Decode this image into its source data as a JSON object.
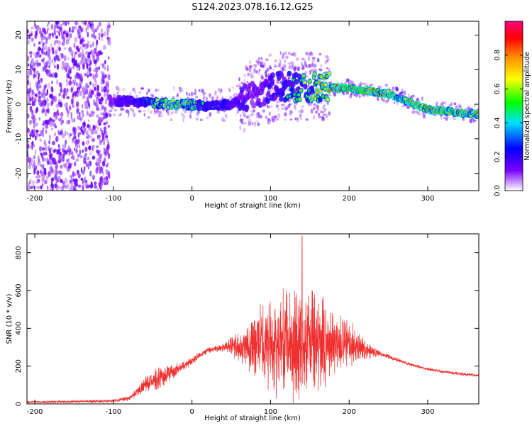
{
  "figure_title": "S124.2023.078.16.12.G25",
  "colors": {
    "snr_line": "#f03030",
    "frame": "#000000",
    "background": "#ffffff"
  },
  "chart_data": [
    {
      "type": "heatmap",
      "xlabel": "Height of straight line (km)",
      "ylabel": "Frequency (Hz)",
      "xlim": [
        -210,
        365
      ],
      "ylim": [
        -25,
        24
      ],
      "x_ticks": [
        -200,
        -100,
        0,
        100,
        200,
        300
      ],
      "y_ticks": [
        -20,
        -10,
        0,
        10,
        20
      ],
      "colorbar": {
        "label": "Normalized spectral amplitude",
        "range": [
          0,
          1
        ],
        "ticks": [
          0.0,
          0.2,
          0.4,
          0.6,
          0.8
        ],
        "tick_labels": [
          "0.0",
          "0.2",
          "0.4",
          "0.6",
          "0.8"
        ],
        "colormap": [
          "#ffffff",
          "#7a00ff",
          "#0000ff",
          "#00e0ff",
          "#00ff00",
          "#ffff00",
          "#ff8000",
          "#ff0000",
          "#ff0080"
        ]
      },
      "ridge": [
        {
          "x": -100,
          "y": 1,
          "amp": 0.3
        },
        {
          "x": -60,
          "y": 0.5,
          "amp": 0.45
        },
        {
          "x": -20,
          "y": 0,
          "amp": 0.85
        },
        {
          "x": 20,
          "y": -0.5,
          "amp": 0.5
        },
        {
          "x": 50,
          "y": 0,
          "amp": 0.4
        },
        {
          "x": 80,
          "y": 3,
          "amp": 0.3
        },
        {
          "x": 110,
          "y": 5,
          "amp": 0.4
        },
        {
          "x": 160,
          "y": 5,
          "amp": 0.7
        },
        {
          "x": 200,
          "y": 4.5,
          "amp": 0.9
        },
        {
          "x": 250,
          "y": 3,
          "amp": 0.85
        },
        {
          "x": 300,
          "y": -1.5,
          "amp": 0.85
        },
        {
          "x": 365,
          "y": -3,
          "amp": 0.8
        }
      ]
    },
    {
      "type": "line",
      "xlabel": "Height of straight line (km)",
      "ylabel": "SNR (10 * v/v)",
      "xlim": [
        -210,
        365
      ],
      "ylim": [
        0,
        900
      ],
      "x_ticks": [
        -200,
        -100,
        0,
        100,
        200,
        300
      ],
      "y_ticks": [
        0,
        200,
        400,
        600,
        800
      ],
      "envelope": {
        "x": [
          -210,
          -100,
          -80,
          -60,
          -40,
          -20,
          0,
          20,
          40,
          60,
          80,
          100,
          120,
          140,
          160,
          180,
          200,
          220,
          240,
          260,
          280,
          300,
          320,
          340,
          365
        ],
        "mean": [
          10,
          15,
          30,
          100,
          140,
          180,
          230,
          285,
          300,
          310,
          320,
          320,
          320,
          320,
          320,
          320,
          310,
          290,
          265,
          235,
          205,
          185,
          170,
          160,
          150
        ],
        "spread": [
          8,
          10,
          15,
          45,
          70,
          40,
          25,
          20,
          25,
          100,
          200,
          280,
          320,
          360,
          300,
          220,
          150,
          60,
          15,
          12,
          10,
          10,
          10,
          10,
          10
        ]
      },
      "peak": {
        "x": 140,
        "y": 890
      }
    }
  ]
}
